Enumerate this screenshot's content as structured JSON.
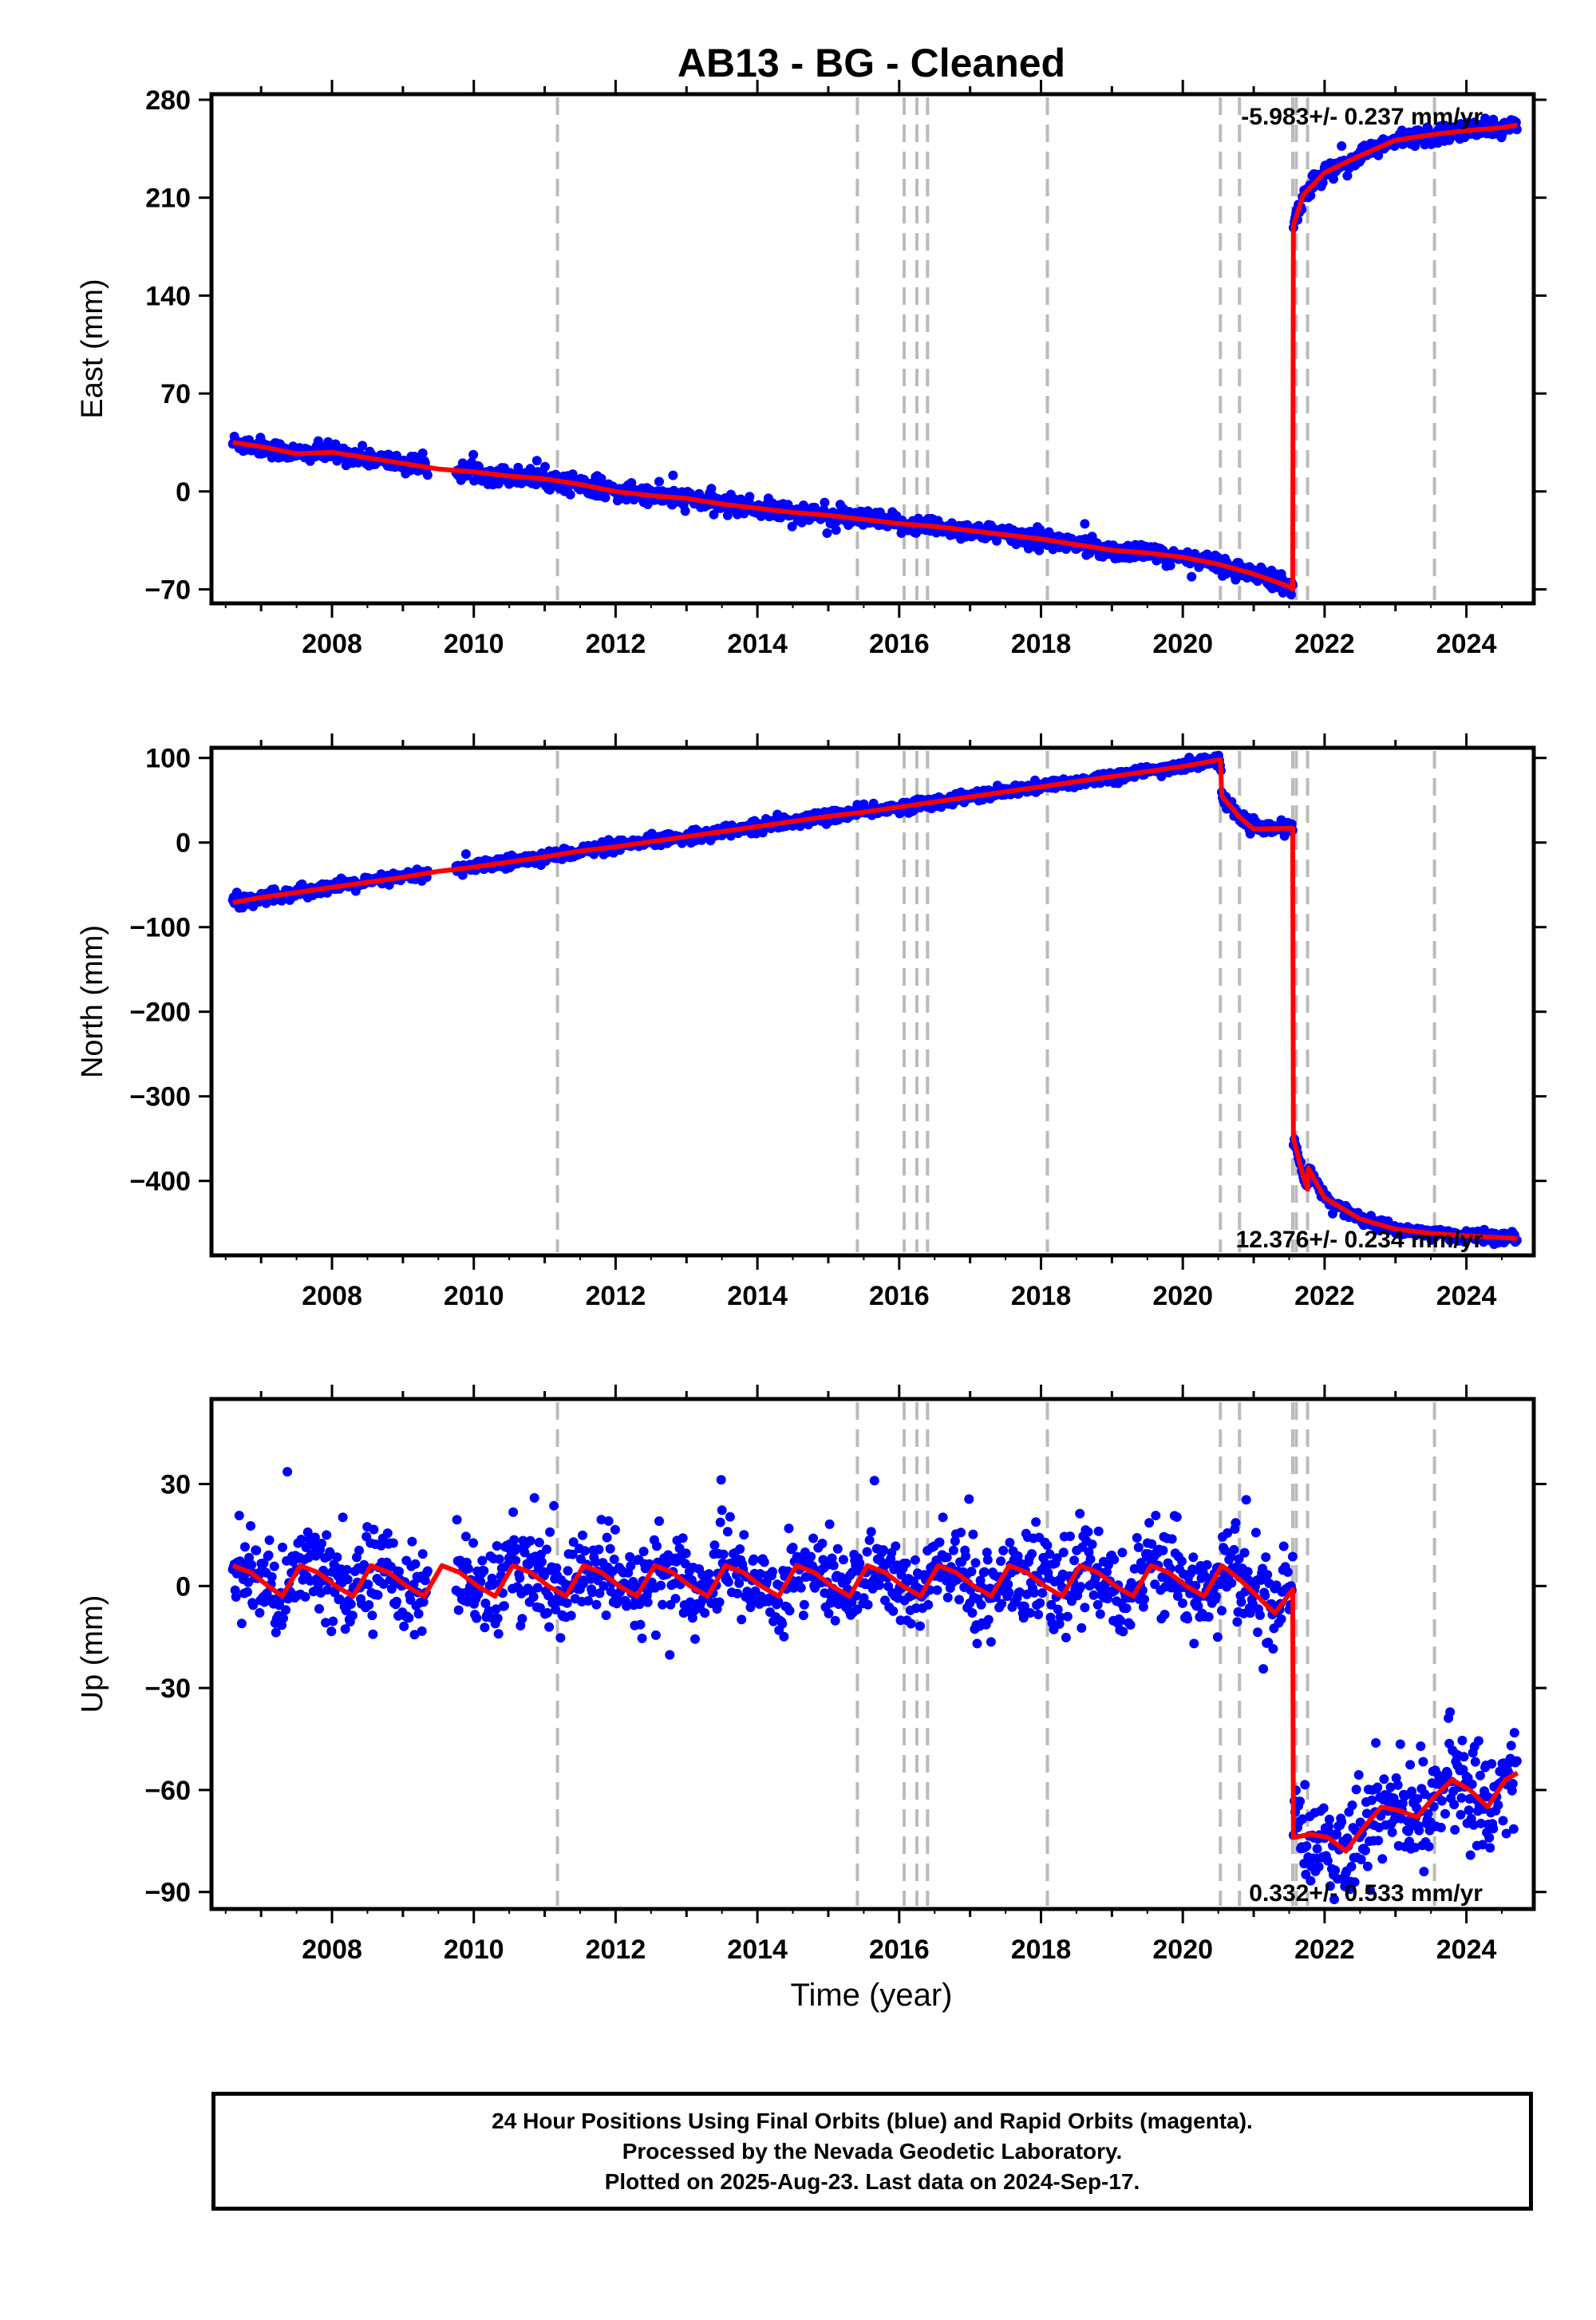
{
  "chart_data": {
    "title": "AB13  - BG - Cleaned",
    "xlabel": "Time (year)",
    "x_ticks": [
      2008,
      2010,
      2012,
      2014,
      2016,
      2018,
      2020,
      2022,
      2024
    ],
    "xlim": [
      2006.3,
      2024.95
    ],
    "offset_epochs": [
      2011.18,
      2015.41,
      2016.07,
      2016.25,
      2016.4,
      2018.09,
      2020.53,
      2020.8,
      2021.55,
      2021.6,
      2021.76,
      2023.55
    ],
    "colors": {
      "data": "#0000ff",
      "model": "#ff0000",
      "offset_line": "#bbbbbb"
    },
    "panels": [
      {
        "type": "scatter",
        "ylabel": "East (mm)",
        "rate_label": "-5.983+/- 0.237 mm/yr",
        "ylim": [
          -80,
          284
        ],
        "y_ticks": [
          -70,
          0,
          70,
          140,
          210,
          280
        ],
        "model": [
          [
            2006.6,
            35
          ],
          [
            2007.0,
            32
          ],
          [
            2007.5,
            27
          ],
          [
            2008.0,
            28
          ],
          [
            2008.5,
            24
          ],
          [
            2009.0,
            20
          ],
          [
            2009.5,
            16
          ],
          [
            2010.0,
            14
          ],
          [
            2010.5,
            11
          ],
          [
            2011.0,
            9
          ],
          [
            2011.5,
            5
          ],
          [
            2012.0,
            0
          ],
          [
            2012.5,
            -3
          ],
          [
            2013.0,
            -5
          ],
          [
            2013.5,
            -9
          ],
          [
            2014.0,
            -12
          ],
          [
            2014.5,
            -15
          ],
          [
            2015.0,
            -17
          ],
          [
            2015.5,
            -20
          ],
          [
            2016.0,
            -23
          ],
          [
            2016.5,
            -25
          ],
          [
            2017.0,
            -28
          ],
          [
            2017.5,
            -31
          ],
          [
            2018.0,
            -34
          ],
          [
            2018.5,
            -38
          ],
          [
            2019.0,
            -42
          ],
          [
            2019.5,
            -44
          ],
          [
            2020.0,
            -47
          ],
          [
            2020.5,
            -52
          ],
          [
            2021.0,
            -59
          ],
          [
            2021.5,
            -68
          ],
          [
            2021.55,
            -70
          ],
          [
            2021.56,
            190
          ],
          [
            2021.7,
            212
          ],
          [
            2022.0,
            228
          ],
          [
            2022.5,
            240
          ],
          [
            2023.0,
            251
          ],
          [
            2023.5,
            255
          ],
          [
            2024.0,
            258
          ],
          [
            2024.5,
            260
          ],
          [
            2024.72,
            262
          ]
        ]
      },
      {
        "type": "scatter",
        "ylabel": "North (mm)",
        "rate_label": "12.376+/- 0.234 mm/yr",
        "ylim": [
          -488,
          112
        ],
        "y_ticks": [
          -400,
          -300,
          -200,
          -100,
          0,
          100
        ],
        "model": [
          [
            2006.6,
            -71
          ],
          [
            2007.0,
            -65
          ],
          [
            2007.5,
            -59
          ],
          [
            2008.0,
            -53
          ],
          [
            2008.5,
            -47
          ],
          [
            2009.0,
            -41
          ],
          [
            2009.5,
            -34
          ],
          [
            2010.0,
            -29
          ],
          [
            2010.5,
            -23
          ],
          [
            2011.0,
            -17
          ],
          [
            2011.5,
            -10
          ],
          [
            2012.0,
            -5
          ],
          [
            2012.5,
            1
          ],
          [
            2013.0,
            7
          ],
          [
            2013.5,
            13
          ],
          [
            2014.0,
            19
          ],
          [
            2014.5,
            25
          ],
          [
            2015.0,
            31
          ],
          [
            2015.5,
            36
          ],
          [
            2016.0,
            42
          ],
          [
            2016.5,
            48
          ],
          [
            2017.0,
            54
          ],
          [
            2017.5,
            60
          ],
          [
            2018.0,
            66
          ],
          [
            2018.5,
            72
          ],
          [
            2019.0,
            78
          ],
          [
            2019.5,
            84
          ],
          [
            2020.0,
            90
          ],
          [
            2020.53,
            98
          ],
          [
            2020.55,
            55
          ],
          [
            2020.8,
            30
          ],
          [
            2021.0,
            16
          ],
          [
            2021.5,
            17
          ],
          [
            2021.55,
            17
          ],
          [
            2021.56,
            -350
          ],
          [
            2021.7,
            -395
          ],
          [
            2021.76,
            -410
          ],
          [
            2021.77,
            -385
          ],
          [
            2022.0,
            -420
          ],
          [
            2022.5,
            -445
          ],
          [
            2023.0,
            -457
          ],
          [
            2023.5,
            -462
          ],
          [
            2024.0,
            -465
          ],
          [
            2024.5,
            -467
          ],
          [
            2024.72,
            -468
          ]
        ]
      },
      {
        "type": "scatter",
        "ylabel": "Up (mm)",
        "rate_label": "0.332+/- 0.533 mm/yr",
        "ylim": [
          -95,
          55
        ],
        "y_ticks": [
          -90,
          -60,
          -30,
          0,
          30
        ],
        "model": [
          [
            2006.6,
            6
          ],
          [
            2006.85,
            4
          ],
          [
            2007.1,
            0
          ],
          [
            2007.3,
            -3
          ],
          [
            2007.55,
            6
          ],
          [
            2007.8,
            4
          ],
          [
            2008.05,
            0
          ],
          [
            2008.3,
            -3
          ],
          [
            2008.55,
            6
          ],
          [
            2008.8,
            4
          ],
          [
            2009.05,
            0
          ],
          [
            2009.3,
            -3
          ],
          [
            2009.55,
            6
          ],
          [
            2009.8,
            4
          ],
          [
            2010.05,
            0
          ],
          [
            2010.3,
            -3
          ],
          [
            2010.55,
            6
          ],
          [
            2010.8,
            4
          ],
          [
            2011.05,
            0
          ],
          [
            2011.3,
            -3
          ],
          [
            2011.55,
            6
          ],
          [
            2011.8,
            4
          ],
          [
            2012.05,
            0
          ],
          [
            2012.3,
            -3
          ],
          [
            2012.55,
            6
          ],
          [
            2012.8,
            4
          ],
          [
            2013.05,
            0
          ],
          [
            2013.3,
            -3
          ],
          [
            2013.55,
            6
          ],
          [
            2013.8,
            4
          ],
          [
            2014.05,
            0
          ],
          [
            2014.3,
            -3
          ],
          [
            2014.55,
            6
          ],
          [
            2014.8,
            4
          ],
          [
            2015.05,
            0
          ],
          [
            2015.3,
            -3
          ],
          [
            2015.55,
            6
          ],
          [
            2015.8,
            4
          ],
          [
            2016.05,
            0
          ],
          [
            2016.3,
            -3
          ],
          [
            2016.55,
            6
          ],
          [
            2016.8,
            4
          ],
          [
            2017.05,
            0
          ],
          [
            2017.3,
            -3
          ],
          [
            2017.55,
            6
          ],
          [
            2017.8,
            4
          ],
          [
            2018.05,
            0
          ],
          [
            2018.3,
            -3
          ],
          [
            2018.55,
            6
          ],
          [
            2018.8,
            4
          ],
          [
            2019.05,
            0
          ],
          [
            2019.3,
            -3
          ],
          [
            2019.55,
            6
          ],
          [
            2019.8,
            4
          ],
          [
            2020.05,
            0
          ],
          [
            2020.3,
            -3
          ],
          [
            2020.55,
            6
          ],
          [
            2020.8,
            2
          ],
          [
            2021.05,
            -3
          ],
          [
            2021.3,
            -8
          ],
          [
            2021.55,
            -1
          ],
          [
            2021.56,
            -74
          ],
          [
            2021.8,
            -73
          ],
          [
            2022.05,
            -74
          ],
          [
            2022.3,
            -78
          ],
          [
            2022.55,
            -71
          ],
          [
            2022.8,
            -65
          ],
          [
            2023.05,
            -66
          ],
          [
            2023.3,
            -68
          ],
          [
            2023.55,
            -62
          ],
          [
            2023.8,
            -57
          ],
          [
            2024.05,
            -60
          ],
          [
            2024.3,
            -65
          ],
          [
            2024.55,
            -57
          ],
          [
            2024.72,
            -55
          ]
        ]
      }
    ]
  },
  "footer": {
    "line1": "24 Hour Positions Using Final Orbits (blue) and Rapid Orbits (magenta).",
    "line2": "Processed by the Nevada Geodetic Laboratory.",
    "line3": "Plotted on 2025-Aug-23. Last data on 2024-Sep-17."
  }
}
